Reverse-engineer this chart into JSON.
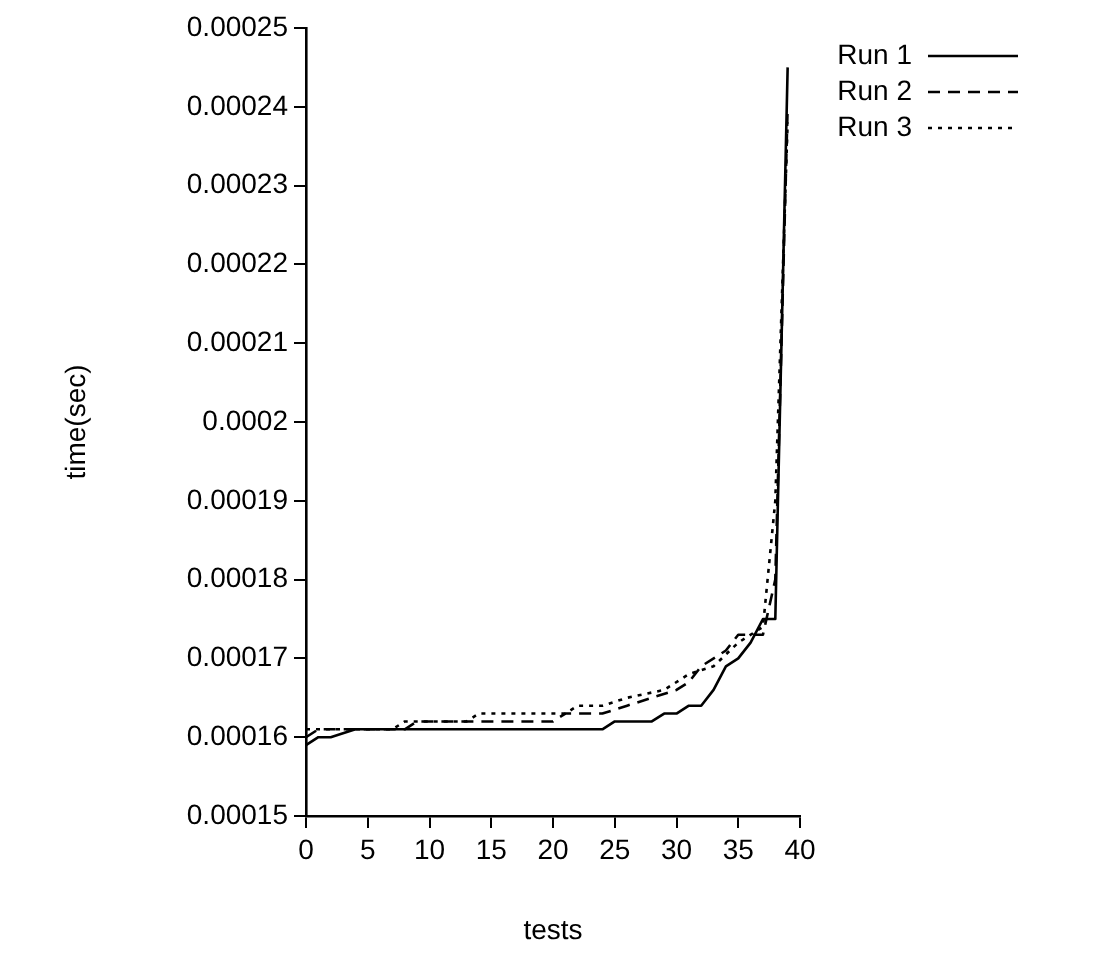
{
  "chart_data": {
    "type": "line",
    "xlabel": "tests",
    "ylabel": "time(sec)",
    "xlim": [
      0,
      40
    ],
    "xticks": [
      0,
      5,
      10,
      15,
      20,
      25,
      30,
      35,
      40
    ],
    "ylim": [
      0.00015,
      0.00025
    ],
    "yticks": [
      0.00015,
      0.00016,
      0.00017,
      0.00018,
      0.00019,
      0.0002,
      0.00021,
      0.00022,
      0.00023,
      0.00024,
      0.00025
    ],
    "grid": false,
    "legend": "top right",
    "marker": "none",
    "series": [
      {
        "name": "Run 1",
        "color": "#000000",
        "line_style": "solid",
        "x": [
          0,
          1,
          2,
          4,
          24,
          25,
          28,
          29,
          30,
          31,
          32,
          33,
          34,
          35,
          36,
          37,
          38,
          39
        ],
        "values": [
          0.000159,
          0.00016,
          0.00016,
          0.000161,
          0.000161,
          0.000162,
          0.000162,
          0.000163,
          0.000163,
          0.000164,
          0.000164,
          0.000166,
          0.000169,
          0.00017,
          0.000172,
          0.000175,
          0.000175,
          0.000245
        ]
      },
      {
        "name": "Run 2",
        "color": "#000000",
        "line_style": "dashed",
        "x": [
          0,
          1,
          8,
          9,
          20,
          21,
          24,
          26,
          28,
          30,
          31,
          32,
          34,
          35,
          37,
          38,
          39
        ],
        "values": [
          0.00016,
          0.000161,
          0.000161,
          0.000162,
          0.000162,
          0.000163,
          0.000163,
          0.000164,
          0.000165,
          0.000166,
          0.000167,
          0.000169,
          0.000171,
          0.000173,
          0.000173,
          0.00018,
          0.00024
        ]
      },
      {
        "name": "Run 3",
        "color": "#000000",
        "line_style": "dotted",
        "x": [
          0,
          7,
          8,
          13,
          14,
          21,
          22,
          24,
          26,
          29,
          31,
          33,
          35,
          37,
          38,
          39
        ],
        "values": [
          0.000161,
          0.000161,
          0.000162,
          0.000162,
          0.000163,
          0.000163,
          0.000164,
          0.000164,
          0.000165,
          0.000166,
          0.000168,
          0.000169,
          0.000172,
          0.000174,
          0.00019,
          0.000238
        ]
      }
    ]
  }
}
